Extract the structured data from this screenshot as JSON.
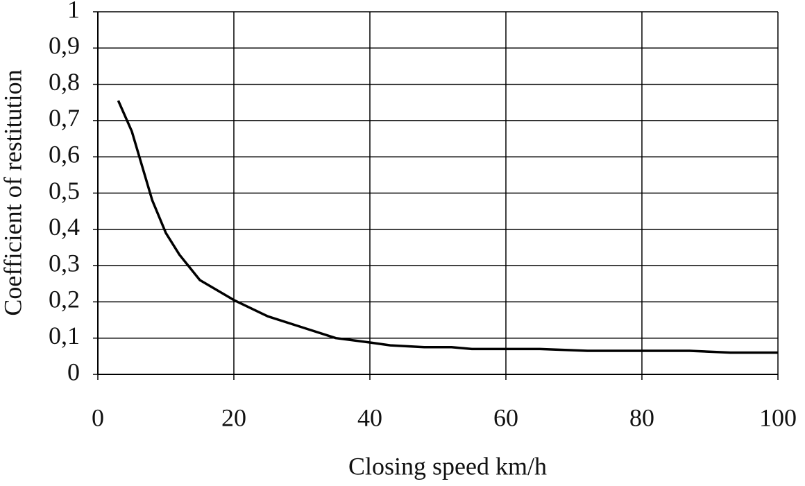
{
  "chart_data": {
    "type": "line",
    "x_label": "Closing speed km/h",
    "y_label": "Coefficient of restitution",
    "xlim": [
      0,
      100
    ],
    "ylim": [
      0,
      1
    ],
    "xticks": [
      0,
      20,
      40,
      60,
      80,
      100
    ],
    "yticks": [
      0,
      {
        "value": 0.1,
        "label": "0,1"
      },
      {
        "value": 0.2,
        "label": "0,2"
      },
      {
        "value": 0.3,
        "label": "0,3"
      },
      {
        "value": 0.4,
        "label": "0,4"
      },
      {
        "value": 0.5,
        "label": "0,5"
      },
      {
        "value": 0.6,
        "label": "0,6"
      },
      {
        "value": 0.7,
        "label": "0,7"
      },
      {
        "value": 0.8,
        "label": "0,8"
      },
      {
        "value": 0.9,
        "label": "0,9"
      },
      1
    ],
    "grid": true,
    "x": [
      3,
      5,
      8,
      10,
      12,
      15,
      20,
      25,
      30,
      35,
      40,
      43,
      48,
      52,
      55,
      65,
      72,
      87,
      93,
      100
    ],
    "series": [
      {
        "color": "#000000",
        "values": [
          0.755,
          0.67,
          0.48,
          0.39,
          0.33,
          0.26,
          0.205,
          0.16,
          0.13,
          0.1,
          0.088,
          0.08,
          0.075,
          0.075,
          0.07,
          0.07,
          0.065,
          0.065,
          0.06,
          0.06
        ]
      }
    ]
  }
}
